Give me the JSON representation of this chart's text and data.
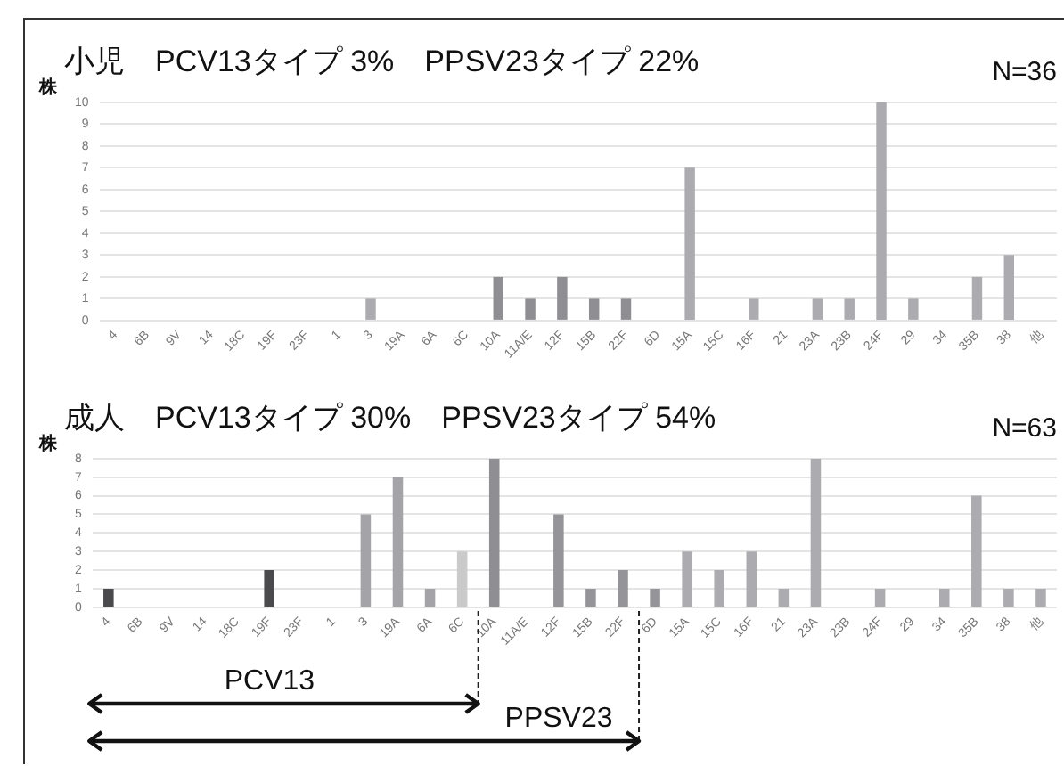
{
  "chart_data": [
    {
      "type": "bar",
      "title": "小児　PCV13タイプ 3%　PPSV23タイプ 22%",
      "ylabel": "株",
      "annotations": [
        "N=36"
      ],
      "categories": [
        "4",
        "6B",
        "9V",
        "14",
        "18C",
        "19F",
        "23F",
        "1",
        "3",
        "19A",
        "6A",
        "6C",
        "10A",
        "11A/E",
        "12F",
        "15B",
        "22F",
        "6D",
        "15A",
        "15C",
        "16F",
        "21",
        "23A",
        "23B",
        "24F",
        "29",
        "34",
        "35B",
        "38",
        "他"
      ],
      "values": [
        0,
        0,
        0,
        0,
        0,
        0,
        0,
        0,
        1,
        0,
        0,
        0,
        2,
        1,
        2,
        1,
        1,
        0,
        7,
        0,
        1,
        0,
        1,
        1,
        10,
        1,
        0,
        2,
        3,
        0
      ],
      "colors": [
        "#acacb0",
        "#acacb0",
        "#acacb0",
        "#acacb0",
        "#acacb0",
        "#acacb0",
        "#acacb0",
        "#acacb0",
        "#acacb0",
        "#acacb0",
        "#acacb0",
        "#acacb0",
        "#8e8e93",
        "#8e8e93",
        "#8e8e93",
        "#8e8e93",
        "#8e8e93",
        "#acacb0",
        "#acacb0",
        "#acacb0",
        "#acacb0",
        "#acacb0",
        "#acacb0",
        "#acacb0",
        "#acacb0",
        "#acacb0",
        "#acacb0",
        "#acacb0",
        "#acacb0",
        "#acacb0"
      ],
      "ylim": [
        0,
        10
      ],
      "yticks": [
        0,
        1,
        2,
        3,
        4,
        5,
        6,
        7,
        8,
        9,
        10
      ],
      "grid": "y",
      "legend": false
    },
    {
      "type": "bar",
      "title": "成人　PCV13タイプ 30%　PPSV23タイプ 54%",
      "ylabel": "株",
      "annotations": [
        "N=63",
        "PCV13",
        "PPSV23"
      ],
      "categories": [
        "4",
        "6B",
        "9V",
        "14",
        "18C",
        "19F",
        "23F",
        "1",
        "3",
        "19A",
        "6A",
        "6C",
        "10A",
        "11A/E",
        "12F",
        "15B",
        "22F",
        "6D",
        "15A",
        "15C",
        "16F",
        "21",
        "23A",
        "23B",
        "24F",
        "29",
        "34",
        "35B",
        "38",
        "他"
      ],
      "values": [
        1,
        0,
        0,
        0,
        0,
        2,
        0,
        0,
        5,
        7,
        1,
        3,
        8,
        0,
        5,
        1,
        2,
        1,
        3,
        2,
        3,
        1,
        8,
        0,
        1,
        0,
        1,
        6,
        1,
        1
      ],
      "colors": [
        "#4a4a4c",
        "#4a4a4c",
        "#4a4a4c",
        "#4a4a4c",
        "#4a4a4c",
        "#4a4a4c",
        "#4a4a4c",
        "#a4a4a8",
        "#a4a4a8",
        "#a4a4a8",
        "#a4a4a8",
        "#cacaca",
        "#8e8e93",
        "#959599",
        "#959599",
        "#959599",
        "#959599",
        "#959599",
        "#acacb0",
        "#acacb0",
        "#acacb0",
        "#acacb0",
        "#acacb0",
        "#acacb0",
        "#acacb0",
        "#acacb0",
        "#acacb0",
        "#acacb0",
        "#acacb0",
        "#acacb0"
      ],
      "ylim": [
        0,
        8
      ],
      "yticks": [
        0,
        1,
        2,
        3,
        4,
        5,
        6,
        7,
        8
      ],
      "grid": "y",
      "legend": false
    }
  ]
}
